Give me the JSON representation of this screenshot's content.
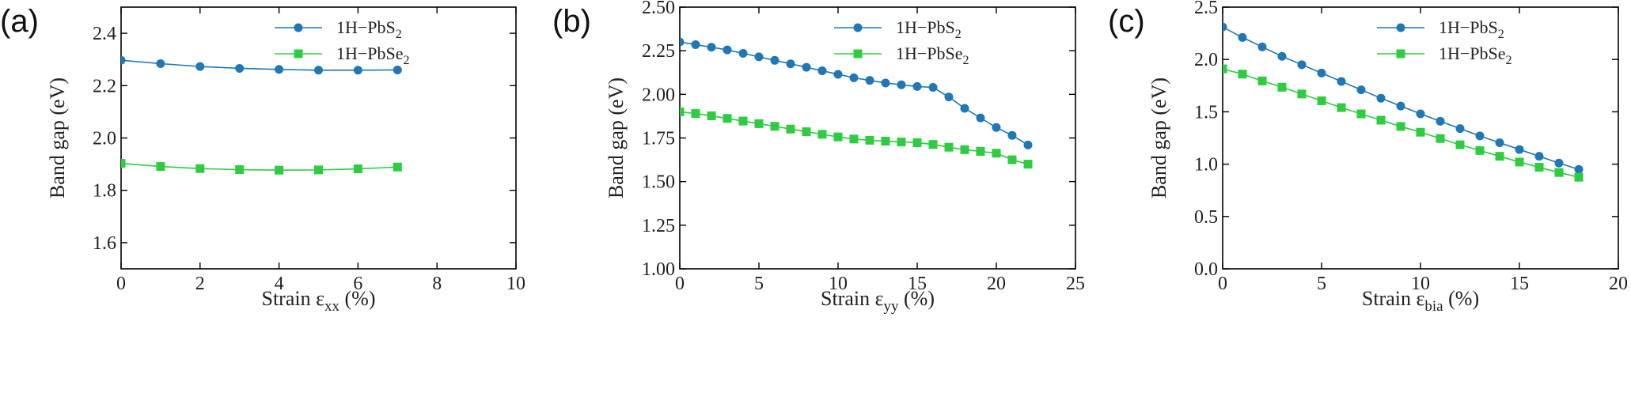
{
  "chart_data": [
    {
      "type": "line",
      "panel_label": "(a)",
      "xlabel": "Strain ε",
      "xlabel_sub": "xx",
      "xlabel_suffix": " (%)",
      "ylabel": "Band gap (eV)",
      "xlim": [
        0,
        10
      ],
      "ylim": [
        1.5,
        2.5
      ],
      "xticks": [
        0,
        2,
        4,
        6,
        8,
        10
      ],
      "yticks": [
        1.6,
        1.8,
        2.0,
        2.2,
        2.4
      ],
      "ytick_labels": [
        "1.6",
        "1.8",
        "2.0",
        "2.2",
        "2.4"
      ],
      "legend_position": "top-right",
      "series": [
        {
          "name": "1H−PbS",
          "name_sub": "2",
          "color": "#1f77b4",
          "marker": "circle",
          "x": [
            0,
            1,
            2,
            3,
            4,
            5,
            6,
            7
          ],
          "y": [
            2.297,
            2.284,
            2.273,
            2.266,
            2.262,
            2.259,
            2.259,
            2.26
          ]
        },
        {
          "name": "1H−PbSe",
          "name_sub": "2",
          "color": "#2ecc40",
          "marker": "square",
          "x": [
            0,
            1,
            2,
            3,
            4,
            5,
            6,
            7
          ],
          "y": [
            1.903,
            1.891,
            1.883,
            1.879,
            1.877,
            1.878,
            1.882,
            1.889
          ]
        }
      ]
    },
    {
      "type": "line",
      "panel_label": "(b)",
      "xlabel": "Strain ε",
      "xlabel_sub": "yy",
      "xlabel_suffix": " (%)",
      "ylabel": "Band gap (eV)",
      "xlim": [
        0,
        25
      ],
      "ylim": [
        1.0,
        2.5
      ],
      "xticks": [
        0,
        5,
        10,
        15,
        20,
        25
      ],
      "yticks": [
        1.0,
        1.25,
        1.5,
        1.75,
        2.0,
        2.25,
        2.5
      ],
      "ytick_labels": [
        "1.00",
        "1.25",
        "1.50",
        "1.75",
        "2.00",
        "2.25",
        "2.50"
      ],
      "legend_position": "top-right",
      "series": [
        {
          "name": "1H−PbS",
          "name_sub": "2",
          "color": "#1f77b4",
          "marker": "circle",
          "x": [
            0,
            1,
            2,
            3,
            4,
            5,
            6,
            7,
            8,
            9,
            10,
            11,
            12,
            13,
            14,
            15,
            16,
            17,
            18,
            19,
            20,
            21,
            22
          ],
          "y": [
            2.3,
            2.285,
            2.27,
            2.255,
            2.235,
            2.215,
            2.195,
            2.175,
            2.155,
            2.135,
            2.115,
            2.095,
            2.08,
            2.065,
            2.055,
            2.045,
            2.04,
            1.985,
            1.92,
            1.865,
            1.81,
            1.765,
            1.71
          ]
        },
        {
          "name": "1H−PbSe",
          "name_sub": "2",
          "color": "#2ecc40",
          "marker": "square",
          "x": [
            0,
            1,
            2,
            3,
            4,
            5,
            6,
            7,
            8,
            9,
            10,
            11,
            12,
            13,
            14,
            15,
            16,
            17,
            18,
            19,
            20,
            21,
            22
          ],
          "y": [
            1.9,
            1.89,
            1.877,
            1.862,
            1.847,
            1.832,
            1.817,
            1.801,
            1.786,
            1.771,
            1.756,
            1.744,
            1.737,
            1.732,
            1.727,
            1.723,
            1.713,
            1.697,
            1.683,
            1.673,
            1.663,
            1.625,
            1.6
          ]
        }
      ]
    },
    {
      "type": "line",
      "panel_label": "(c)",
      "xlabel": "Strain ε",
      "xlabel_sub": "bia",
      "xlabel_suffix": " (%)",
      "ylabel": "Band gap (eV)",
      "xlim": [
        0,
        20
      ],
      "ylim": [
        0.0,
        2.5
      ],
      "xticks": [
        0,
        5,
        10,
        15,
        20
      ],
      "yticks": [
        0.0,
        0.5,
        1.0,
        1.5,
        2.0,
        2.5
      ],
      "ytick_labels": [
        "0.0",
        "0.5",
        "1.0",
        "1.5",
        "2.0",
        "2.5"
      ],
      "legend_position": "top-right",
      "series": [
        {
          "name": "1H−PbS",
          "name_sub": "2",
          "color": "#1f77b4",
          "marker": "circle",
          "x": [
            0,
            1,
            2,
            3,
            4,
            5,
            6,
            7,
            8,
            9,
            10,
            11,
            12,
            13,
            14,
            15,
            16,
            17,
            18
          ],
          "y": [
            2.31,
            2.21,
            2.12,
            2.03,
            1.95,
            1.87,
            1.79,
            1.71,
            1.63,
            1.555,
            1.48,
            1.41,
            1.34,
            1.27,
            1.205,
            1.14,
            1.075,
            1.01,
            0.95
          ]
        },
        {
          "name": "1H−PbSe",
          "name_sub": "2",
          "color": "#2ecc40",
          "marker": "square",
          "x": [
            0,
            1,
            2,
            3,
            4,
            5,
            6,
            7,
            8,
            9,
            10,
            11,
            12,
            13,
            14,
            15,
            16,
            17,
            18
          ],
          "y": [
            1.91,
            1.86,
            1.795,
            1.735,
            1.67,
            1.605,
            1.54,
            1.48,
            1.42,
            1.36,
            1.305,
            1.245,
            1.185,
            1.13,
            1.075,
            1.02,
            0.97,
            0.92,
            0.875
          ]
        }
      ]
    }
  ]
}
